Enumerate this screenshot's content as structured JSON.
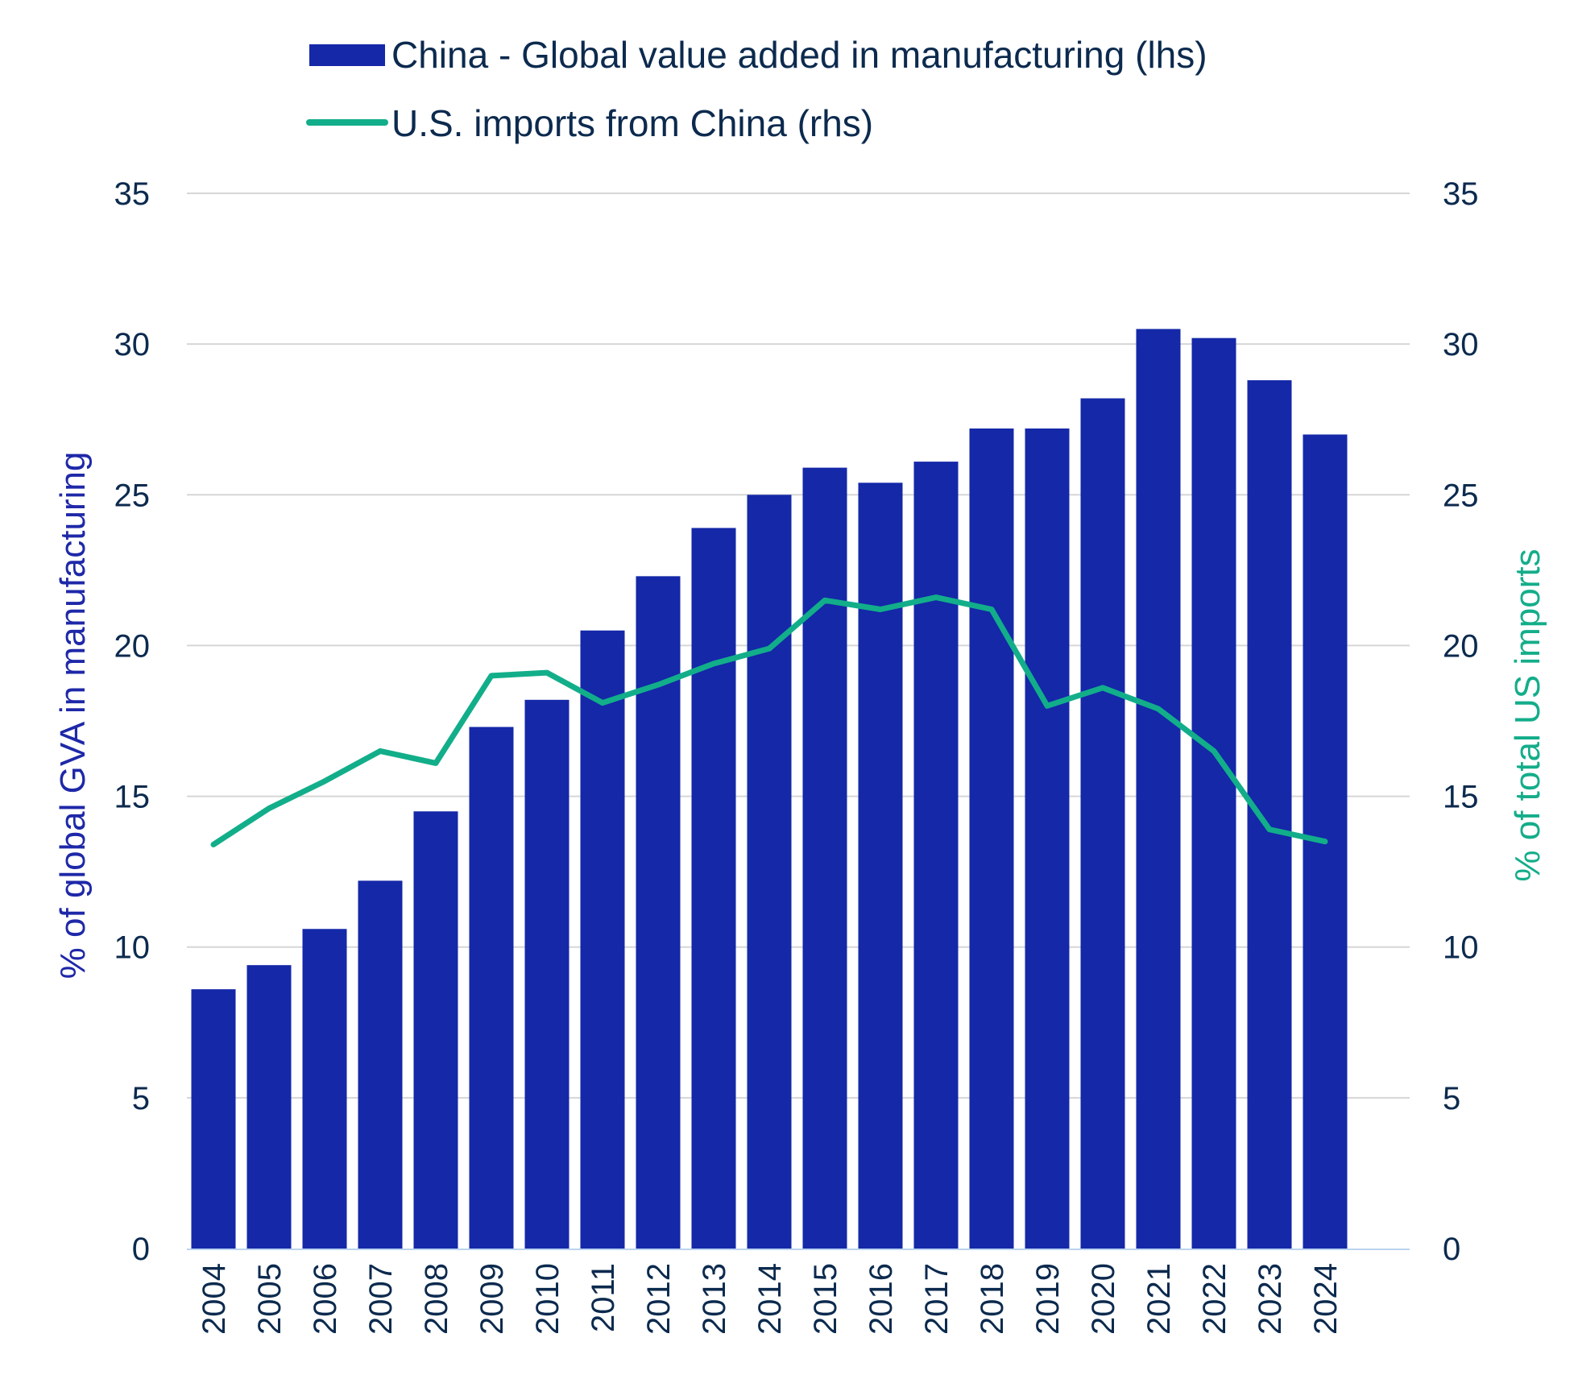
{
  "colors": {
    "bar": "#1428a8",
    "line": "#12ae8a",
    "text": "#0c2a4e",
    "left_axis_title": "#1e28a8",
    "right_axis_title": "#14ad8a",
    "grid": "#d6d6d6",
    "baseline": "#bcd4f0"
  },
  "chart_data": {
    "type": "bar",
    "legend": {
      "position": "top",
      "items": [
        {
          "label": "China - Global value added in manufacturing (lhs)",
          "shape": "bar"
        },
        {
          "label": "U.S. imports from China (rhs)",
          "shape": "line"
        }
      ]
    },
    "categories": [
      "2004",
      "2005",
      "2006",
      "2007",
      "2008",
      "2009",
      "2010",
      "2011",
      "2012",
      "2013",
      "2014",
      "2015",
      "2016",
      "2017",
      "2018",
      "2019",
      "2020",
      "2021",
      "2022",
      "2023",
      "2024"
    ],
    "series": [
      {
        "name": "China - Global value added in manufacturing (lhs)",
        "type": "bar",
        "axis": "left",
        "values": [
          8.6,
          9.4,
          10.6,
          12.2,
          14.5,
          17.3,
          18.2,
          20.5,
          22.3,
          23.9,
          25.0,
          25.9,
          25.4,
          26.1,
          27.2,
          27.2,
          28.2,
          30.5,
          30.2,
          28.8,
          27.0
        ]
      },
      {
        "name": "U.S. imports from China (rhs)",
        "type": "line",
        "axis": "right",
        "values": [
          13.4,
          14.6,
          15.5,
          16.5,
          16.1,
          19.0,
          19.1,
          18.1,
          18.7,
          19.4,
          19.9,
          21.5,
          21.2,
          21.6,
          21.2,
          18.0,
          18.6,
          17.9,
          16.5,
          13.9,
          13.5
        ]
      }
    ],
    "y_left": {
      "label": "% of global GVA in manufacturing",
      "min": 0,
      "max": 35,
      "ticks": [
        "0",
        "5",
        "10",
        "15",
        "20",
        "25",
        "30",
        "35"
      ]
    },
    "y_right": {
      "label": "% of total US imports",
      "min": 0,
      "max": 35,
      "ticks": [
        "0",
        "5",
        "10",
        "15",
        "20",
        "25",
        "30",
        "35"
      ]
    },
    "grid": true
  }
}
